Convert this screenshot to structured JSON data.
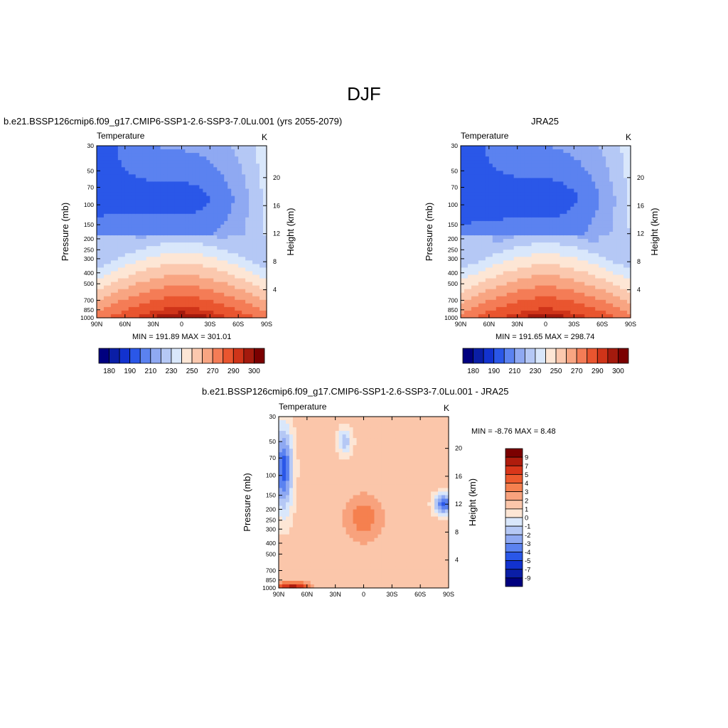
{
  "page": {
    "main_title": "DJF"
  },
  "chart_data": [
    {
      "type": "heatmap",
      "id": "model",
      "title": "b.e21.BSSP126cmip6.f09_g17.CMIP6-SSP1-2.6-SSP3-7.0Lu.001 (yrs 2055-2079)",
      "left_label": "Temperature",
      "units": "K",
      "ylabel": "Pressure (mb)",
      "ylabel_right": "Height (km)",
      "x_ticks": [
        "90N",
        "60N",
        "30N",
        "0",
        "30S",
        "60S",
        "90S"
      ],
      "y_ticks": [
        "30",
        "50",
        "70",
        "100",
        "150",
        "200",
        "250",
        "300",
        "400",
        "500",
        "700",
        "850",
        "1000"
      ],
      "y_right_ticks": [
        "20",
        "16",
        "12",
        "8",
        "4"
      ],
      "ylim": [
        1000,
        30
      ],
      "scale": "log pressure",
      "min_label": "MIN = 191.89  MAX = 301.01",
      "min": 191.89,
      "max": 301.01,
      "colorbar_labels": [
        "180",
        "190",
        "210",
        "230",
        "250",
        "270",
        "290",
        "300"
      ],
      "colorbar_colors": [
        "#00007f",
        "#0a1ea6",
        "#1232cf",
        "#2a57e8",
        "#5b82f0",
        "#8fa9f2",
        "#b5c8f5",
        "#d9e7fb",
        "#fde6d5",
        "#fbc8ae",
        "#f8a582",
        "#f47c56",
        "#e9552f",
        "#cf3419",
        "#a41a0d",
        "#7b0000"
      ],
      "orientation": "horizontal"
    },
    {
      "type": "heatmap",
      "id": "obs",
      "title": "JRA25",
      "left_label": "Temperature",
      "units": "K",
      "ylabel": "Pressure (mb)",
      "ylabel_right": "Height (km)",
      "x_ticks": [
        "90N",
        "60N",
        "30N",
        "0",
        "30S",
        "60S",
        "90S"
      ],
      "y_ticks": [
        "30",
        "50",
        "70",
        "100",
        "150",
        "200",
        "250",
        "300",
        "400",
        "500",
        "700",
        "850",
        "1000"
      ],
      "y_right_ticks": [
        "20",
        "16",
        "12",
        "8",
        "4"
      ],
      "ylim": [
        1000,
        30
      ],
      "scale": "log pressure",
      "min_label": "MIN = 191.65  MAX = 298.74",
      "min": 191.65,
      "max": 298.74,
      "colorbar_labels": [
        "180",
        "190",
        "210",
        "230",
        "250",
        "270",
        "290",
        "300"
      ],
      "colorbar_colors": [
        "#00007f",
        "#0a1ea6",
        "#1232cf",
        "#2a57e8",
        "#5b82f0",
        "#8fa9f2",
        "#b5c8f5",
        "#d9e7fb",
        "#fde6d5",
        "#fbc8ae",
        "#f8a582",
        "#f47c56",
        "#e9552f",
        "#cf3419",
        "#a41a0d",
        "#7b0000"
      ],
      "orientation": "horizontal"
    },
    {
      "type": "heatmap",
      "id": "diff",
      "title": "b.e21.BSSP126cmip6.f09_g17.CMIP6-SSP1-2.6-SSP3-7.0Lu.001 - JRA25",
      "left_label": "Temperature",
      "units": "K",
      "ylabel": "Pressure (mb)",
      "ylabel_right": "Height (km)",
      "x_ticks": [
        "90N",
        "60N",
        "30N",
        "0",
        "30S",
        "60S",
        "90S"
      ],
      "y_ticks": [
        "30",
        "50",
        "70",
        "100",
        "150",
        "200",
        "250",
        "300",
        "400",
        "500",
        "700",
        "850",
        "1000"
      ],
      "y_right_ticks": [
        "20",
        "16",
        "12",
        "8",
        "4"
      ],
      "ylim": [
        1000,
        30
      ],
      "scale": "log pressure",
      "min_label": "MIN =  -8.76  MAX =   8.48",
      "min": -8.76,
      "max": 8.48,
      "colorbar_labels": [
        "9",
        "7",
        "5",
        "4",
        "3",
        "2",
        "1",
        "0",
        "-1",
        "-2",
        "-3",
        "-4",
        "-5",
        "-7",
        "-9"
      ],
      "colorbar_colors": [
        "#7b0000",
        "#b01c0d",
        "#d9361a",
        "#ed5a2e",
        "#f5804f",
        "#f8a27d",
        "#fbc6aa",
        "#fde6d5",
        "#d9e7fb",
        "#b5c8f5",
        "#8fa9f2",
        "#5b82f0",
        "#2a57e8",
        "#1232cf",
        "#0a1ea6",
        "#00007f"
      ],
      "orientation": "vertical"
    }
  ]
}
